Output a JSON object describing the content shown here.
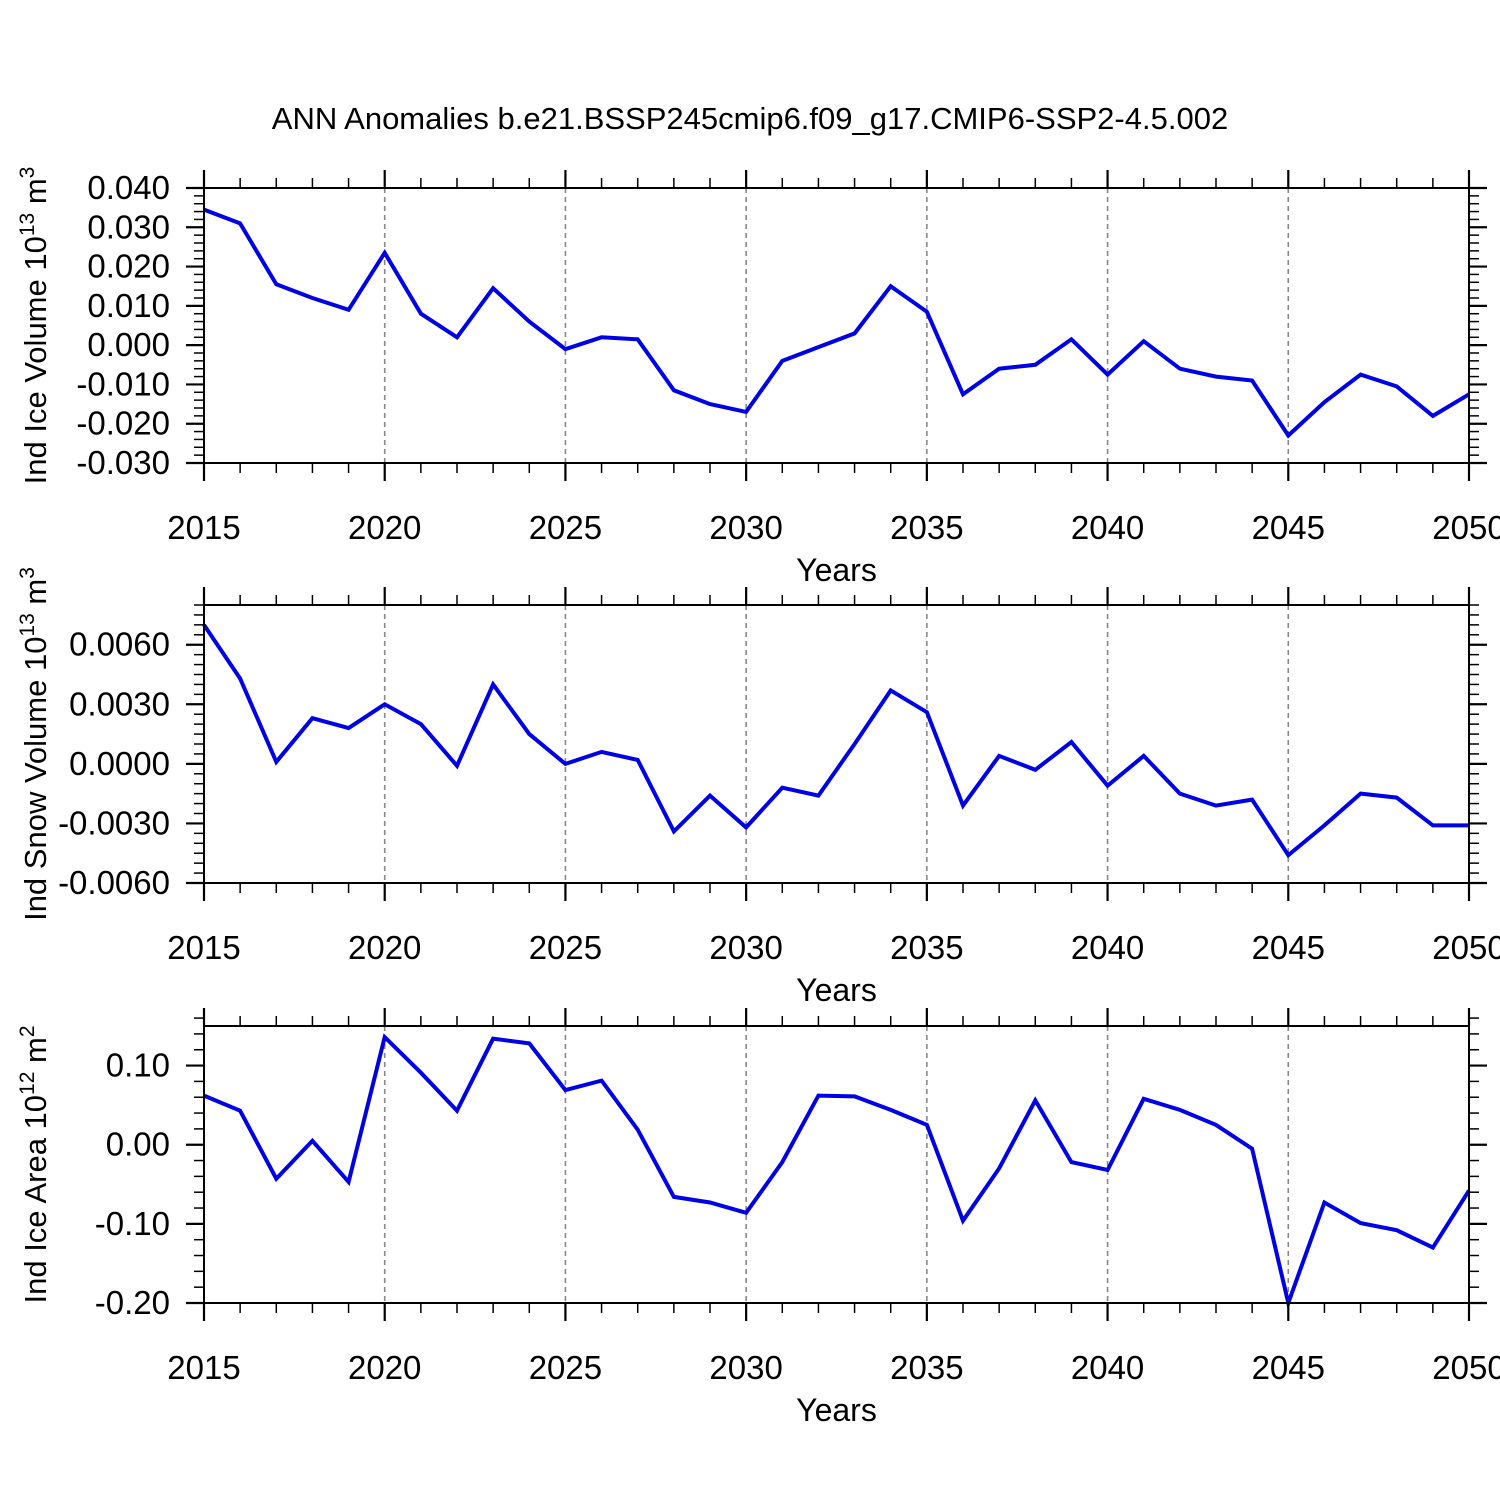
{
  "title": "ANN Anomalies b.e21.BSSP245cmip6.f09_g17.CMIP6-SSP2-4.5.002",
  "style": {
    "background": "#ffffff",
    "line_color": "#0000e6",
    "grid_color": "#888888",
    "axis_color": "#000000",
    "text_color": "#000000"
  },
  "x_axis": {
    "label": "Years",
    "min": 2015,
    "max": 2050,
    "major_ticks": [
      2015,
      2020,
      2025,
      2030,
      2035,
      2040,
      2045,
      2050
    ],
    "major_labels": [
      "2015",
      "2020",
      "2025",
      "2030",
      "2035",
      "2040",
      "2045",
      "2050"
    ],
    "minor_step": 1,
    "grid_years": [
      2020,
      2025,
      2030,
      2035,
      2040,
      2045
    ],
    "years": [
      2015,
      2016,
      2017,
      2018,
      2019,
      2020,
      2021,
      2022,
      2023,
      2024,
      2025,
      2026,
      2027,
      2028,
      2029,
      2030,
      2031,
      2032,
      2033,
      2034,
      2035,
      2036,
      2037,
      2038,
      2039,
      2040,
      2041,
      2042,
      2043,
      2044,
      2045,
      2046,
      2047,
      2048,
      2049,
      2050
    ]
  },
  "chart_data": [
    {
      "type": "line",
      "series_name": "Ind Ice Volume",
      "ylabel": {
        "base": "Ind Ice Volume 10",
        "exp": "13",
        "unit": " m",
        "unit_exp": "3"
      },
      "ylim": [
        -0.03,
        0.04
      ],
      "ytick_values": [
        0.04,
        0.03,
        0.02,
        0.01,
        0.0,
        -0.01,
        -0.02,
        -0.03
      ],
      "ytick_labels": [
        "0.040",
        "0.030",
        "0.020",
        "0.010",
        "0.000",
        "-0.010",
        "-0.020",
        "-0.030"
      ],
      "yminor_step": 0.002,
      "values": [
        0.0345,
        0.031,
        0.0155,
        0.012,
        0.009,
        0.0235,
        0.008,
        0.002,
        0.0145,
        0.006,
        -0.001,
        0.002,
        0.0015,
        -0.0115,
        -0.015,
        -0.017,
        -0.004,
        -0.0005,
        0.003,
        0.015,
        0.0085,
        -0.0125,
        -0.006,
        -0.005,
        0.0015,
        -0.0075,
        0.001,
        -0.006,
        -0.008,
        -0.009,
        -0.023,
        -0.0145,
        -0.0075,
        -0.0105,
        -0.018,
        -0.0125
      ]
    },
    {
      "type": "line",
      "series_name": "Ind Snow Volume",
      "ylabel": {
        "base": "Ind Snow Volume 10",
        "exp": "13",
        "unit": " m",
        "unit_exp": "3"
      },
      "ylim": [
        -0.006,
        0.008
      ],
      "ytick_values": [
        0.006,
        0.003,
        0.0,
        -0.003,
        -0.006
      ],
      "ytick_labels": [
        "0.0060",
        "0.0030",
        "0.0000",
        "-0.0030",
        "-0.0060"
      ],
      "yminor_step": 0.0005,
      "values": [
        0.007,
        0.0043,
        0.0001,
        0.0023,
        0.0018,
        0.003,
        0.002,
        -0.0001,
        0.004,
        0.0015,
        0.0,
        0.0006,
        0.0002,
        -0.0034,
        -0.0016,
        -0.0032,
        -0.0012,
        -0.0016,
        0.001,
        0.0037,
        0.0026,
        -0.0021,
        0.0004,
        -0.0003,
        0.0011,
        -0.0011,
        0.0004,
        -0.0015,
        -0.0021,
        -0.0018,
        -0.0046,
        -0.0031,
        -0.0015,
        -0.0017,
        -0.0031,
        -0.0031
      ]
    },
    {
      "type": "line",
      "series_name": "Ind Ice Area",
      "ylabel": {
        "base": "Ind Ice Area 10",
        "exp": "12",
        "unit": " m",
        "unit_exp": "2"
      },
      "ylim": [
        -0.2,
        0.15
      ],
      "ytick_values": [
        0.1,
        0.0,
        -0.1,
        -0.2
      ],
      "ytick_labels": [
        "0.10",
        "0.00",
        "-0.10",
        "-0.20"
      ],
      "yminor_step": 0.02,
      "values": [
        0.062,
        0.043,
        -0.043,
        0.005,
        -0.047,
        0.136,
        0.091,
        0.043,
        0.134,
        0.128,
        0.069,
        0.081,
        0.019,
        -0.066,
        -0.073,
        -0.086,
        -0.022,
        0.062,
        0.061,
        0.044,
        0.025,
        -0.096,
        -0.03,
        0.056,
        -0.022,
        -0.032,
        0.058,
        0.044,
        0.025,
        -0.005,
        -0.2,
        -0.073,
        -0.099,
        -0.108,
        -0.13,
        -0.058
      ]
    }
  ]
}
